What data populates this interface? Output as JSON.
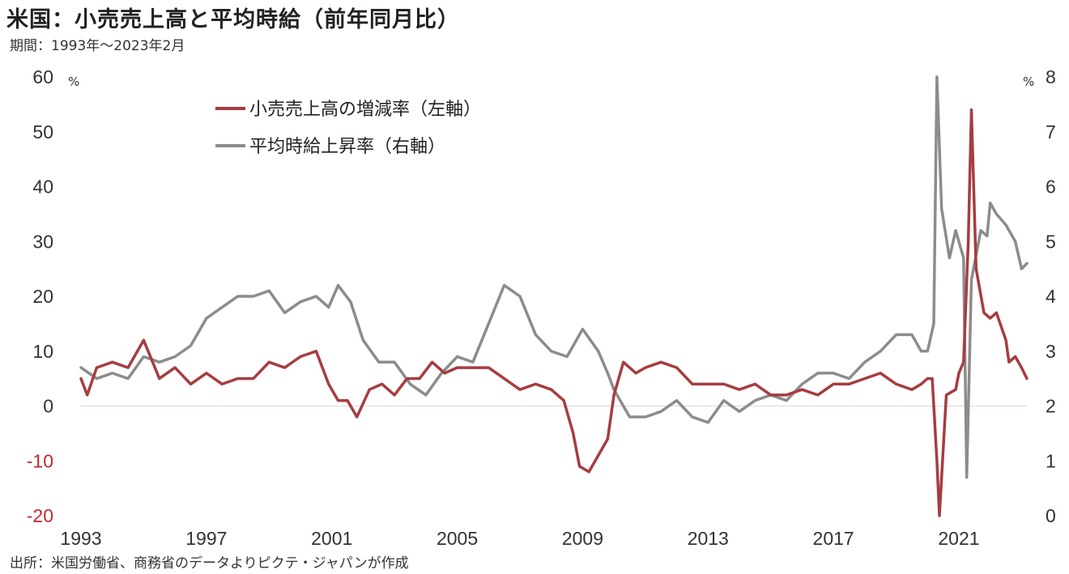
{
  "title": "米国：小売売上高と平均時給（前年同月比）",
  "subtitle": "期間：1993年～2023年2月",
  "source": "出所：米国労働省、商務省のデータよりピクテ・ジャパンが作成",
  "chart_data": {
    "type": "line",
    "title": "米国：小売売上高と平均時給（前年同月比）",
    "subtitle": "期間：1993年～2023年2月",
    "left_axis": {
      "unit": "%",
      "ylim": [
        -20,
        60
      ],
      "ticks": [
        60,
        50,
        40,
        30,
        20,
        10,
        0,
        -10,
        -20
      ]
    },
    "right_axis": {
      "unit": "%",
      "ylim": [
        0,
        8
      ],
      "ticks": [
        8,
        7,
        6,
        5,
        4,
        3,
        2,
        1,
        0
      ]
    },
    "x_axis": {
      "xlim": [
        1993.0,
        2023.17
      ],
      "ticks": [
        "1993",
        "1997",
        "2001",
        "2005",
        "2009",
        "2013",
        "2017",
        "2021"
      ]
    },
    "legend_position": "top-left",
    "grid": false,
    "colors": {
      "retail": "#a63d40",
      "wage": "#8c8c8c",
      "negative_tick": "#c0282d"
    },
    "series": [
      {
        "name": "小売売上高の増減率（左軸）",
        "axis": "left",
        "points": [
          [
            1993.0,
            5
          ],
          [
            1993.2,
            2
          ],
          [
            1993.5,
            7
          ],
          [
            1994.0,
            8
          ],
          [
            1994.5,
            7
          ],
          [
            1995.0,
            12
          ],
          [
            1995.5,
            5
          ],
          [
            1996.0,
            7
          ],
          [
            1996.5,
            4
          ],
          [
            1997.0,
            6
          ],
          [
            1997.5,
            4
          ],
          [
            1998.0,
            5
          ],
          [
            1998.5,
            5
          ],
          [
            1999.0,
            8
          ],
          [
            1999.5,
            7
          ],
          [
            2000.0,
            9
          ],
          [
            2000.5,
            10
          ],
          [
            2000.9,
            4
          ],
          [
            2001.2,
            1
          ],
          [
            2001.5,
            1
          ],
          [
            2001.8,
            -2
          ],
          [
            2002.2,
            3
          ],
          [
            2002.6,
            4
          ],
          [
            2003.0,
            2
          ],
          [
            2003.4,
            5
          ],
          [
            2003.8,
            5
          ],
          [
            2004.2,
            8
          ],
          [
            2004.6,
            6
          ],
          [
            2005.0,
            7
          ],
          [
            2005.5,
            7
          ],
          [
            2006.0,
            7
          ],
          [
            2006.5,
            5
          ],
          [
            2007.0,
            3
          ],
          [
            2007.5,
            4
          ],
          [
            2008.0,
            3
          ],
          [
            2008.4,
            1
          ],
          [
            2008.7,
            -5
          ],
          [
            2008.9,
            -11
          ],
          [
            2009.2,
            -12
          ],
          [
            2009.5,
            -9
          ],
          [
            2009.8,
            -6
          ],
          [
            2010.0,
            2
          ],
          [
            2010.3,
            8
          ],
          [
            2010.7,
            6
          ],
          [
            2011.0,
            7
          ],
          [
            2011.5,
            8
          ],
          [
            2012.0,
            7
          ],
          [
            2012.5,
            4
          ],
          [
            2013.0,
            4
          ],
          [
            2013.5,
            4
          ],
          [
            2014.0,
            3
          ],
          [
            2014.5,
            4
          ],
          [
            2015.0,
            2
          ],
          [
            2015.5,
            2
          ],
          [
            2016.0,
            3
          ],
          [
            2016.5,
            2
          ],
          [
            2017.0,
            4
          ],
          [
            2017.5,
            4
          ],
          [
            2018.0,
            5
          ],
          [
            2018.5,
            6
          ],
          [
            2019.0,
            4
          ],
          [
            2019.5,
            3
          ],
          [
            2019.8,
            4
          ],
          [
            2020.0,
            5
          ],
          [
            2020.15,
            5
          ],
          [
            2020.3,
            -10
          ],
          [
            2020.38,
            -20
          ],
          [
            2020.6,
            2
          ],
          [
            2020.9,
            3
          ],
          [
            2021.0,
            6
          ],
          [
            2021.15,
            8
          ],
          [
            2021.3,
            30
          ],
          [
            2021.4,
            54
          ],
          [
            2021.55,
            25
          ],
          [
            2021.8,
            17
          ],
          [
            2022.0,
            16
          ],
          [
            2022.2,
            17
          ],
          [
            2022.5,
            12
          ],
          [
            2022.6,
            8
          ],
          [
            2022.8,
            9
          ],
          [
            2023.0,
            7
          ],
          [
            2023.17,
            5
          ]
        ]
      },
      {
        "name": "平均時給上昇率（右軸）",
        "axis": "right",
        "points": [
          [
            1993.0,
            2.7
          ],
          [
            1993.5,
            2.5
          ],
          [
            1994.0,
            2.6
          ],
          [
            1994.5,
            2.5
          ],
          [
            1995.0,
            2.9
          ],
          [
            1995.5,
            2.8
          ],
          [
            1996.0,
            2.9
          ],
          [
            1996.5,
            3.1
          ],
          [
            1997.0,
            3.6
          ],
          [
            1997.5,
            3.8
          ],
          [
            1998.0,
            4.0
          ],
          [
            1998.5,
            4.0
          ],
          [
            1999.0,
            4.1
          ],
          [
            1999.5,
            3.7
          ],
          [
            2000.0,
            3.9
          ],
          [
            2000.5,
            4.0
          ],
          [
            2000.9,
            3.8
          ],
          [
            2001.2,
            4.2
          ],
          [
            2001.6,
            3.9
          ],
          [
            2002.0,
            3.2
          ],
          [
            2002.5,
            2.8
          ],
          [
            2003.0,
            2.8
          ],
          [
            2003.5,
            2.4
          ],
          [
            2004.0,
            2.2
          ],
          [
            2004.5,
            2.6
          ],
          [
            2005.0,
            2.9
          ],
          [
            2005.5,
            2.8
          ],
          [
            2006.0,
            3.5
          ],
          [
            2006.5,
            4.2
          ],
          [
            2007.0,
            4.0
          ],
          [
            2007.5,
            3.3
          ],
          [
            2008.0,
            3.0
          ],
          [
            2008.5,
            2.9
          ],
          [
            2009.0,
            3.4
          ],
          [
            2009.5,
            3.0
          ],
          [
            2009.8,
            2.6
          ],
          [
            2010.0,
            2.3
          ],
          [
            2010.5,
            1.8
          ],
          [
            2011.0,
            1.8
          ],
          [
            2011.5,
            1.9
          ],
          [
            2012.0,
            2.1
          ],
          [
            2012.5,
            1.8
          ],
          [
            2013.0,
            1.7
          ],
          [
            2013.5,
            2.1
          ],
          [
            2014.0,
            1.9
          ],
          [
            2014.5,
            2.1
          ],
          [
            2015.0,
            2.2
          ],
          [
            2015.5,
            2.1
          ],
          [
            2016.0,
            2.4
          ],
          [
            2016.5,
            2.6
          ],
          [
            2017.0,
            2.6
          ],
          [
            2017.5,
            2.5
          ],
          [
            2018.0,
            2.8
          ],
          [
            2018.5,
            3.0
          ],
          [
            2019.0,
            3.3
          ],
          [
            2019.5,
            3.3
          ],
          [
            2019.8,
            3.0
          ],
          [
            2020.0,
            3.0
          ],
          [
            2020.2,
            3.5
          ],
          [
            2020.3,
            8.0
          ],
          [
            2020.45,
            5.6
          ],
          [
            2020.7,
            4.7
          ],
          [
            2020.9,
            5.2
          ],
          [
            2021.0,
            5.0
          ],
          [
            2021.15,
            4.7
          ],
          [
            2021.25,
            0.7
          ],
          [
            2021.4,
            4.3
          ],
          [
            2021.7,
            5.2
          ],
          [
            2021.9,
            5.1
          ],
          [
            2022.0,
            5.7
          ],
          [
            2022.2,
            5.5
          ],
          [
            2022.5,
            5.3
          ],
          [
            2022.8,
            5.0
          ],
          [
            2023.0,
            4.5
          ],
          [
            2023.17,
            4.6
          ]
        ]
      }
    ]
  }
}
